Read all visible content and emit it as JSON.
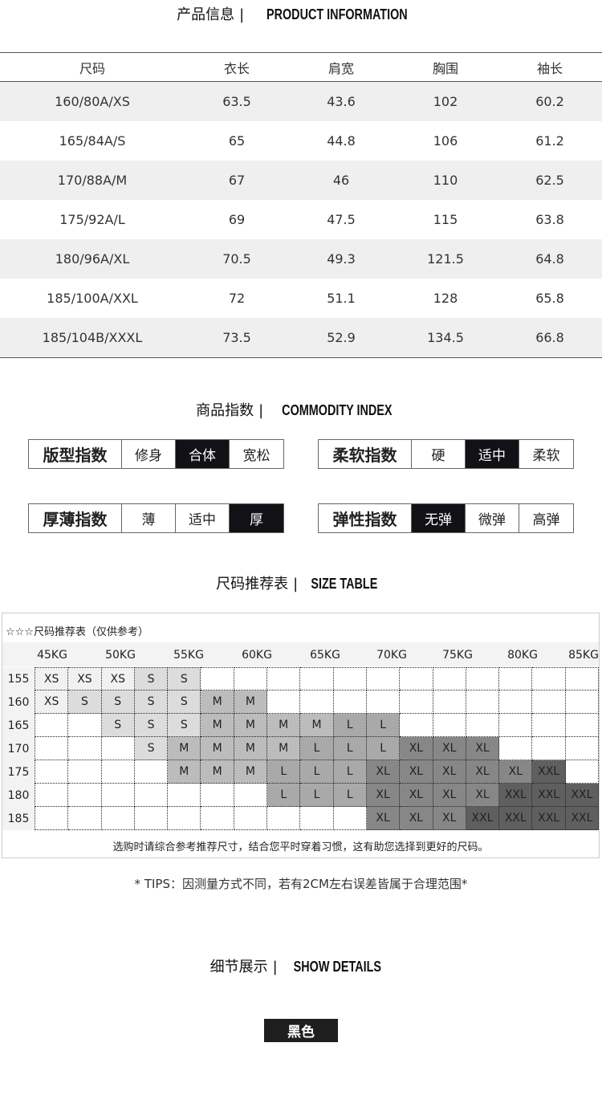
{
  "product_info": {
    "title_cn": "产品信息",
    "sep": "|",
    "title_en": "PRODUCT INFORMATION",
    "headers": [
      "尺码",
      "衣长",
      "肩宽",
      "胸围",
      "袖长"
    ],
    "rows": [
      [
        "160/80A/XS",
        "63.5",
        "43.6",
        "102",
        "60.2"
      ],
      [
        "165/84A/S",
        "65",
        "44.8",
        "106",
        "61.2"
      ],
      [
        "170/88A/M",
        "67",
        "46",
        "110",
        "62.5"
      ],
      [
        "175/92A/L",
        "69",
        "47.5",
        "115",
        "63.8"
      ],
      [
        "180/96A/XL",
        "70.5",
        "49.3",
        "121.5",
        "64.8"
      ],
      [
        "185/100A/XXL",
        "72",
        "51.1",
        "128",
        "65.8"
      ],
      [
        "185/104B/XXXL",
        "73.5",
        "52.9",
        "134.5",
        "66.8"
      ]
    ]
  },
  "commodity_index": {
    "title_cn": "商品指数",
    "sep": "|",
    "title_en": "COMMODITY INDEX",
    "items": [
      {
        "label": "版型指数",
        "options": [
          "修身",
          "合体",
          "宽松"
        ],
        "selected": 1
      },
      {
        "label": "柔软指数",
        "options": [
          "硬",
          "适中",
          "柔软"
        ],
        "selected": 1
      },
      {
        "label": "厚薄指数",
        "options": [
          "薄",
          "适中",
          "厚"
        ],
        "selected": 2
      },
      {
        "label": "弹性指数",
        "options": [
          "无弹",
          "微弹",
          "高弹"
        ],
        "selected": 0
      }
    ]
  },
  "size_table": {
    "title_cn": "尺码推荐表",
    "sep": "|",
    "title_en": "SIZE TABLE",
    "box_title": "☆☆☆尺码推荐表（仅供参考）",
    "weights": [
      "45KG",
      "50KG",
      "55KG",
      "60KG",
      "65KG",
      "70KG",
      "75KG",
      "80KG",
      "85KG"
    ],
    "heights": [
      "155",
      "160",
      "165",
      "170",
      "175",
      "180",
      "185"
    ],
    "cells": [
      [
        "XS",
        "XS",
        "XS",
        "S",
        "S",
        "",
        "",
        "",
        "",
        "",
        "",
        "",
        "",
        "",
        "",
        "",
        ""
      ],
      [
        "XS",
        "S",
        "S",
        "S",
        "S",
        "M",
        "M",
        "",
        "",
        "",
        "",
        "",
        "",
        "",
        "",
        "",
        ""
      ],
      [
        "",
        "",
        "S",
        "S",
        "S",
        "M",
        "M",
        "M",
        "M",
        "L",
        "L",
        "",
        "",
        "",
        "",
        "",
        ""
      ],
      [
        "",
        "",
        "",
        "S",
        "M",
        "M",
        "M",
        "M",
        "L",
        "L",
        "L",
        "XL",
        "XL",
        "XL",
        "",
        "",
        ""
      ],
      [
        "",
        "",
        "",
        "",
        "M",
        "M",
        "M",
        "L",
        "L",
        "L",
        "XL",
        "XL",
        "XL",
        "XL",
        "XL",
        "XXL",
        ""
      ],
      [
        "",
        "",
        "",
        "",
        "",
        "",
        "",
        "L",
        "L",
        "L",
        "XL",
        "XL",
        "XL",
        "XL",
        "XXL",
        "XXL",
        "XXL"
      ],
      [
        "",
        "",
        "",
        "",
        "",
        "",
        "",
        "",
        "",
        "",
        "XL",
        "XL",
        "XL",
        "XXL",
        "XXL",
        "XXL",
        "XXL"
      ]
    ],
    "note": "选购时请综合参考推荐尺寸，结合您平时穿着习惯，这有助您选择到更好的尺码。",
    "size_colors": {
      "XS": "#f1f1f1",
      "S": "#dcdcdc",
      "M": "#bcbcbc",
      "L": "#a9a9a9",
      "XL": "#878787",
      "XXL": "#5f5f5f"
    }
  },
  "tips": "* TIPS：因测量方式不同，若有2CM左右误差皆属于合理范围*",
  "details": {
    "title_cn": "细节展示",
    "sep": "|",
    "title_en": "SHOW DETAILS",
    "color_badge": "黑色"
  }
}
